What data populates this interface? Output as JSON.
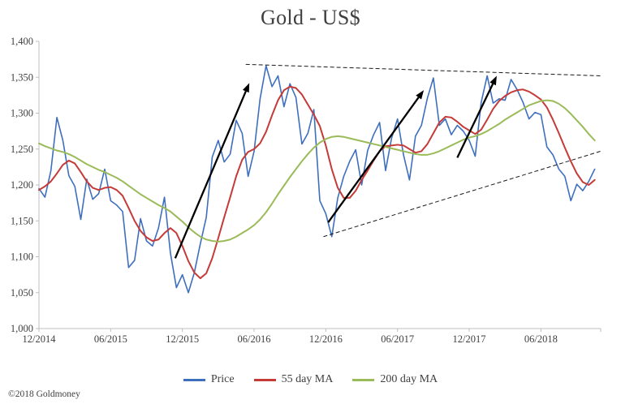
{
  "title": "Gold - US$",
  "copyright": "©2018 Goldmoney",
  "chart_data": {
    "type": "line",
    "title": "Gold - US$",
    "xlabel": "",
    "ylabel": "",
    "x_min": 0,
    "x_max": 47,
    "y_min": 1000,
    "y_max": 1400,
    "points_per_month": 2,
    "grid": false,
    "legend_position": "bottom",
    "axis_color": "#BFBFBF",
    "text_color": "#404040",
    "y_ticks": [
      {
        "value": 1000,
        "label": "1,000"
      },
      {
        "value": 1050,
        "label": "1,050"
      },
      {
        "value": 1100,
        "label": "1,100"
      },
      {
        "value": 1150,
        "label": "1,150"
      },
      {
        "value": 1200,
        "label": "1,200"
      },
      {
        "value": 1250,
        "label": "1,250"
      },
      {
        "value": 1300,
        "label": "1,300"
      },
      {
        "value": 1350,
        "label": "1,350"
      },
      {
        "value": 1400,
        "label": "1,400"
      }
    ],
    "x_ticks": [
      {
        "month": 0,
        "label": "12/2014"
      },
      {
        "month": 6,
        "label": "06/2015"
      },
      {
        "month": 12,
        "label": "12/2015"
      },
      {
        "month": 18,
        "label": "06/2016"
      },
      {
        "month": 24,
        "label": "12/2016"
      },
      {
        "month": 30,
        "label": "06/2017"
      },
      {
        "month": 36,
        "label": "12/2017"
      },
      {
        "month": 42,
        "label": "06/2018"
      }
    ],
    "series": [
      {
        "name": "Price",
        "color": "#3E6FBE",
        "width": 1.6,
        "values": [
          1195,
          1183,
          1220,
          1294,
          1262,
          1213,
          1198,
          1152,
          1208,
          1180,
          1188,
          1222,
          1178,
          1172,
          1163,
          1085,
          1095,
          1153,
          1122,
          1115,
          1140,
          1183,
          1105,
          1057,
          1075,
          1050,
          1078,
          1118,
          1155,
          1239,
          1262,
          1232,
          1243,
          1290,
          1272,
          1212,
          1247,
          1320,
          1366,
          1337,
          1352,
          1309,
          1341,
          1322,
          1257,
          1272,
          1305,
          1178,
          1160,
          1128,
          1182,
          1212,
          1233,
          1249,
          1200,
          1248,
          1270,
          1287,
          1220,
          1265,
          1292,
          1242,
          1207,
          1268,
          1283,
          1321,
          1349,
          1283,
          1292,
          1270,
          1283,
          1275,
          1262,
          1240,
          1315,
          1352,
          1314,
          1320,
          1318,
          1347,
          1333,
          1315,
          1292,
          1301,
          1298,
          1253,
          1242,
          1222,
          1212,
          1178,
          1201,
          1192,
          1205,
          1222
        ]
      },
      {
        "name": "55 day MA",
        "color": "#C43B38",
        "width": 2,
        "values": [
          1193,
          1198,
          1205,
          1216,
          1228,
          1234,
          1230,
          1218,
          1205,
          1196,
          1193,
          1196,
          1197,
          1193,
          1185,
          1168,
          1150,
          1136,
          1127,
          1122,
          1124,
          1133,
          1140,
          1133,
          1115,
          1094,
          1078,
          1070,
          1077,
          1098,
          1126,
          1155,
          1183,
          1212,
          1235,
          1246,
          1250,
          1258,
          1274,
          1297,
          1318,
          1332,
          1337,
          1335,
          1326,
          1312,
          1298,
          1282,
          1255,
          1222,
          1196,
          1182,
          1182,
          1192,
          1207,
          1220,
          1234,
          1247,
          1254,
          1255,
          1256,
          1255,
          1250,
          1245,
          1247,
          1257,
          1272,
          1287,
          1295,
          1294,
          1288,
          1281,
          1276,
          1271,
          1277,
          1291,
          1306,
          1317,
          1324,
          1329,
          1332,
          1333,
          1330,
          1325,
          1319,
          1308,
          1291,
          1272,
          1252,
          1233,
          1216,
          1204,
          1200,
          1207
        ]
      },
      {
        "name": "200 day MA",
        "color": "#9BBB59",
        "width": 2,
        "values": [
          1258,
          1254,
          1251,
          1248,
          1246,
          1243,
          1239,
          1234,
          1229,
          1225,
          1221,
          1218,
          1214,
          1210,
          1205,
          1199,
          1193,
          1187,
          1182,
          1177,
          1172,
          1168,
          1163,
          1156,
          1149,
          1141,
          1134,
          1128,
          1124,
          1122,
          1121,
          1122,
          1124,
          1128,
          1133,
          1138,
          1144,
          1152,
          1162,
          1174,
          1187,
          1199,
          1211,
          1222,
          1233,
          1243,
          1252,
          1259,
          1264,
          1267,
          1268,
          1267,
          1265,
          1263,
          1261,
          1259,
          1257,
          1255,
          1253,
          1251,
          1249,
          1247,
          1245,
          1243,
          1242,
          1242,
          1244,
          1247,
          1251,
          1255,
          1259,
          1263,
          1266,
          1268,
          1271,
          1275,
          1280,
          1285,
          1291,
          1296,
          1301,
          1306,
          1311,
          1314,
          1317,
          1318,
          1317,
          1313,
          1307,
          1299,
          1290,
          1281,
          1271,
          1262
        ]
      }
    ],
    "trendlines": [
      {
        "x1": 17.3,
        "y1": 1368,
        "x2": 47,
        "y2": 1352
      },
      {
        "x1": 23.8,
        "y1": 1128,
        "x2": 47,
        "y2": 1247
      }
    ],
    "arrows": [
      {
        "x1": 11.4,
        "y1": 1098,
        "x2": 17.6,
        "y2": 1342
      },
      {
        "x1": 24.2,
        "y1": 1148,
        "x2": 32.2,
        "y2": 1332
      },
      {
        "x1": 35.0,
        "y1": 1238,
        "x2": 38.3,
        "y2": 1352
      }
    ]
  }
}
